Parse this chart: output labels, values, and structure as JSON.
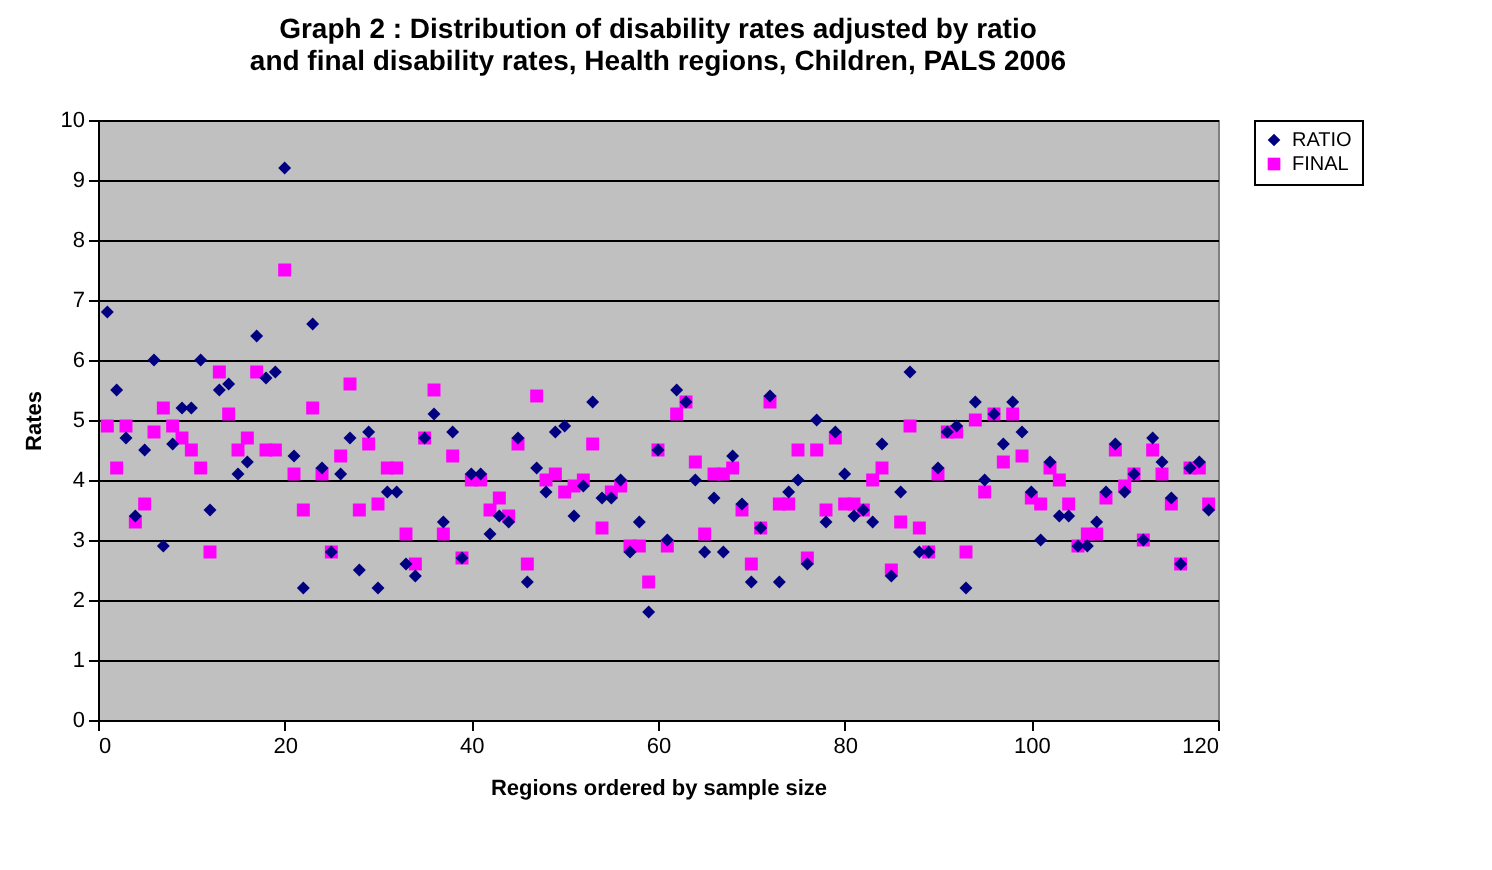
{
  "chart_data": {
    "type": "scatter",
    "title": "Graph 2 : Distribution of disability rates adjusted by ratio and final disability rates, Health regions, Children, PALS 2006",
    "xlabel": "Regions ordered by sample size",
    "ylabel": "Rates",
    "x": [
      1,
      2,
      3,
      4,
      5,
      6,
      7,
      8,
      9,
      10,
      11,
      12,
      13,
      14,
      15,
      16,
      17,
      18,
      19,
      20,
      21,
      22,
      23,
      24,
      25,
      26,
      27,
      28,
      29,
      30,
      31,
      32,
      33,
      34,
      35,
      36,
      37,
      38,
      39,
      40,
      41,
      42,
      43,
      44,
      45,
      46,
      47,
      48,
      49,
      50,
      51,
      52,
      53,
      54,
      55,
      56,
      57,
      58,
      59,
      60,
      61,
      62,
      63,
      64,
      65,
      66,
      67,
      68,
      69,
      70,
      71,
      72,
      73,
      74,
      75,
      76,
      77,
      78,
      79,
      80,
      81,
      82,
      83,
      84,
      85,
      86,
      87,
      88,
      89,
      90,
      91,
      92,
      93,
      94,
      95,
      96,
      97,
      98,
      99,
      100,
      101,
      102,
      103,
      104,
      105,
      106,
      107,
      108,
      109,
      110,
      111,
      112,
      113,
      114,
      115,
      116,
      117,
      118,
      119
    ],
    "series": [
      {
        "name": "RATIO",
        "color": "#000080",
        "marker": "diamond",
        "values": [
          6.8,
          5.5,
          4.7,
          3.4,
          4.5,
          6.0,
          2.9,
          4.6,
          5.2,
          5.2,
          6.0,
          3.5,
          5.5,
          5.6,
          4.1,
          4.3,
          6.4,
          5.7,
          5.8,
          9.2,
          4.4,
          2.2,
          6.6,
          4.2,
          2.8,
          4.1,
          4.7,
          2.5,
          4.8,
          2.2,
          3.8,
          3.8,
          2.6,
          2.4,
          4.7,
          5.1,
          3.3,
          4.8,
          2.7,
          4.1,
          4.1,
          3.1,
          3.4,
          3.3,
          4.7,
          2.3,
          4.2,
          3.8,
          4.8,
          4.9,
          3.4,
          3.9,
          5.3,
          3.7,
          3.7,
          4.0,
          2.8,
          3.3,
          1.8,
          4.5,
          3.0,
          5.5,
          5.3,
          4.0,
          2.8,
          3.7,
          2.8,
          4.4,
          3.6,
          2.3,
          3.2,
          5.4,
          2.3,
          3.8,
          4.0,
          2.6,
          5.0,
          3.3,
          4.8,
          4.1,
          3.4,
          3.5,
          3.3,
          4.6,
          2.4,
          3.8,
          5.8,
          2.8,
          2.8,
          4.2,
          4.8,
          4.9,
          2.2,
          5.3,
          4.0,
          5.1,
          4.6,
          5.3,
          4.8,
          3.8,
          3.0,
          4.3,
          3.4,
          3.4,
          2.9,
          2.9,
          3.3,
          3.8,
          4.6,
          3.8,
          4.1,
          3.0,
          4.7,
          4.3,
          3.7,
          2.6,
          4.2,
          4.3,
          3.5
        ]
      },
      {
        "name": "FINAL",
        "color": "#ff00ff",
        "marker": "square",
        "values": [
          4.9,
          4.2,
          4.9,
          3.3,
          3.6,
          4.8,
          5.2,
          4.9,
          4.7,
          4.5,
          4.2,
          2.8,
          5.8,
          5.1,
          4.5,
          4.7,
          5.8,
          4.5,
          4.5,
          7.5,
          4.1,
          3.5,
          5.2,
          4.1,
          2.8,
          4.4,
          5.6,
          3.5,
          4.6,
          3.6,
          4.2,
          4.2,
          3.1,
          2.6,
          4.7,
          5.5,
          3.1,
          4.4,
          2.7,
          4.0,
          4.0,
          3.5,
          3.7,
          3.4,
          4.6,
          2.6,
          5.4,
          4.0,
          4.1,
          3.8,
          3.9,
          4.0,
          4.6,
          3.2,
          3.8,
          3.9,
          2.9,
          2.9,
          2.3,
          4.5,
          2.9,
          5.1,
          5.3,
          4.3,
          3.1,
          4.1,
          4.1,
          4.2,
          3.5,
          2.6,
          3.2,
          5.3,
          3.6,
          3.6,
          4.5,
          2.7,
          4.5,
          3.5,
          4.7,
          3.6,
          3.6,
          3.5,
          4.0,
          4.2,
          2.5,
          3.3,
          4.9,
          3.2,
          2.8,
          4.1,
          4.8,
          4.8,
          2.8,
          5.0,
          3.8,
          5.1,
          4.3,
          5.1,
          4.4,
          3.7,
          3.6,
          4.2,
          4.0,
          3.6,
          2.9,
          3.1,
          3.1,
          3.7,
          4.5,
          3.9,
          4.1,
          3.0,
          4.5,
          4.1,
          3.6,
          2.6,
          4.2,
          4.2,
          3.6
        ]
      }
    ],
    "xlim": [
      0,
      120
    ],
    "xticks": [
      0,
      20,
      40,
      60,
      80,
      100,
      120
    ],
    "ylim": [
      0,
      10
    ],
    "yticks": [
      0,
      1,
      2,
      3,
      4,
      5,
      6,
      7,
      8,
      9,
      10
    ],
    "grid": "y",
    "legend": "right"
  }
}
